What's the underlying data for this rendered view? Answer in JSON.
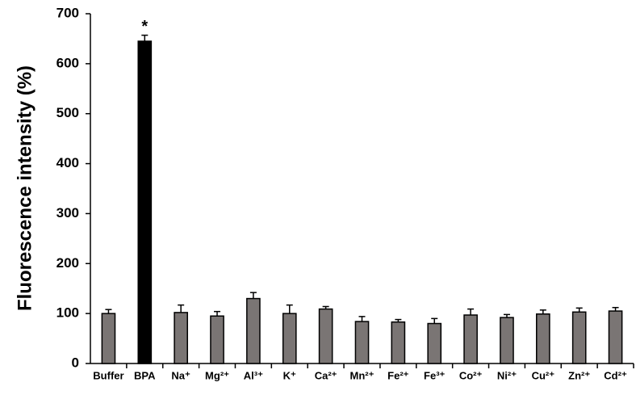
{
  "chart_data": {
    "type": "bar",
    "y_label": "Fluorescence intensity (%)",
    "categories": [
      "Buffer",
      "BPA",
      "Na⁺",
      "Mg²⁺",
      "Al³⁺",
      "K⁺",
      "Ca²⁺",
      "Mn²⁺",
      "Fe²⁺",
      "Fe³⁺",
      "Co²⁺",
      "Ni²⁺",
      "Cu²⁺",
      "Zn²⁺",
      "Cd²⁺"
    ],
    "values": [
      100,
      645,
      102,
      95,
      130,
      100,
      109,
      84,
      83,
      80,
      97,
      92,
      99,
      103,
      105
    ],
    "errors": [
      8,
      12,
      15,
      9,
      12,
      17,
      5,
      10,
      5,
      10,
      12,
      6,
      8,
      8,
      7
    ],
    "colors": [
      "#7a7574",
      "#000000",
      "#7a7574",
      "#7a7574",
      "#7a7574",
      "#7a7574",
      "#7a7574",
      "#7a7574",
      "#7a7574",
      "#7a7574",
      "#7a7574",
      "#7a7574",
      "#7a7574",
      "#7a7574",
      "#7a7574"
    ],
    "annotation": "*",
    "ylim": [
      0,
      700
    ],
    "yticks": [
      0,
      100,
      200,
      300,
      400,
      500,
      600,
      700
    ]
  }
}
